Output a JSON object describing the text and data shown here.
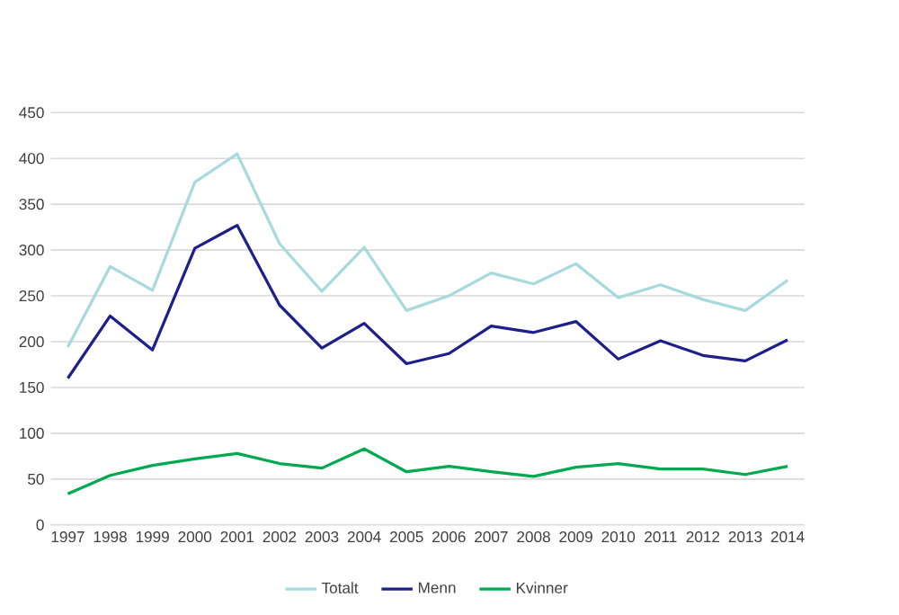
{
  "chart_data": {
    "type": "line",
    "categories": [
      "1997",
      "1998",
      "1999",
      "2000",
      "2001",
      "2002",
      "2003",
      "2004",
      "2005",
      "2006",
      "2007",
      "2008",
      "2009",
      "2010",
      "2011",
      "2012",
      "2013",
      "2014"
    ],
    "series": [
      {
        "name": "Totalt",
        "color": "#a8dadc",
        "values": [
          194,
          282,
          256,
          374,
          405,
          307,
          255,
          303,
          234,
          250,
          275,
          263,
          285,
          248,
          262,
          246,
          234,
          267
        ]
      },
      {
        "name": "Menn",
        "color": "#1f1f8a",
        "values": [
          160,
          228,
          191,
          302,
          327,
          240,
          193,
          220,
          176,
          187,
          217,
          210,
          222,
          181,
          201,
          185,
          179,
          202
        ]
      },
      {
        "name": "Kvinner",
        "color": "#00a94f",
        "values": [
          34,
          54,
          65,
          72,
          78,
          67,
          62,
          83,
          58,
          64,
          58,
          53,
          63,
          67,
          61,
          61,
          55,
          64
        ]
      }
    ],
    "ylim": [
      0,
      450
    ],
    "yticks": [
      0,
      50,
      100,
      150,
      200,
      250,
      300,
      350,
      400,
      450
    ],
    "grid": "y",
    "legend": "bottom",
    "marker": "none",
    "line_style": "solid"
  }
}
